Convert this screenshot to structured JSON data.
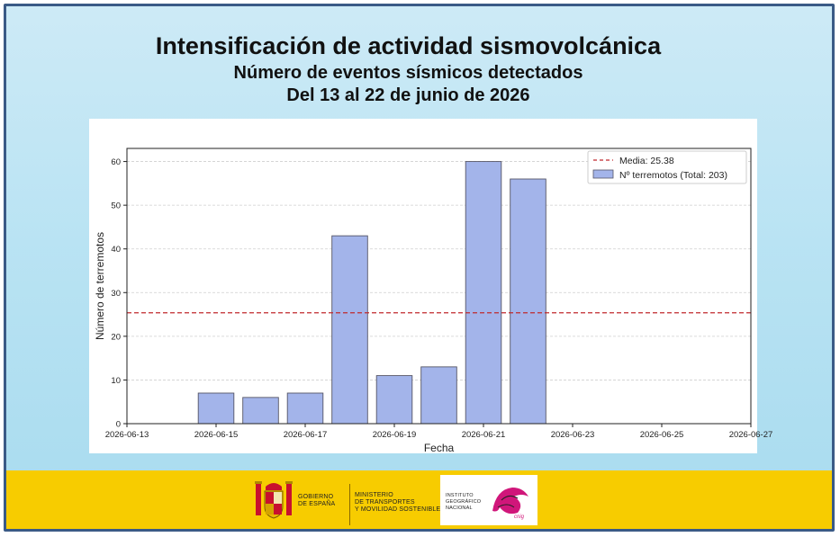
{
  "header": {
    "title": "Intensificación de actividad sismovolcánica",
    "subtitle": "Número de eventos sísmicos detectados",
    "date_range": "Del 13 al 22 de junio de 2026"
  },
  "chart_data": {
    "type": "bar",
    "title": "",
    "xlabel": "Fecha",
    "ylabel": "Número de terremotos",
    "x_ticks": [
      "2026-06-13",
      "2026-06-15",
      "2026-06-17",
      "2026-06-19",
      "2026-06-21",
      "2026-06-23",
      "2026-06-25",
      "2026-06-27"
    ],
    "y_ticks": [
      0,
      10,
      20,
      30,
      40,
      50,
      60
    ],
    "xlim": [
      "2026-06-13",
      "2026-06-27"
    ],
    "ylim": [
      0,
      63
    ],
    "grid": "horizontal dashed",
    "legend_position": "top-right",
    "bars": [
      {
        "date": "2026-06-15",
        "value": 7
      },
      {
        "date": "2026-06-16",
        "value": 6
      },
      {
        "date": "2026-06-17",
        "value": 7
      },
      {
        "date": "2026-06-18",
        "value": 43
      },
      {
        "date": "2026-06-19",
        "value": 11
      },
      {
        "date": "2026-06-20",
        "value": 13
      },
      {
        "date": "2026-06-21",
        "value": 60
      },
      {
        "date": "2026-06-22",
        "value": 56
      }
    ],
    "mean_line": {
      "value": 25.38,
      "label": "Media: 25.38"
    },
    "bar_series_label": "Nº terremotos (Total: 203)",
    "colors": {
      "bar_fill": "#a3b4ea",
      "bar_edge": "#555566",
      "mean_line": "#c0282d"
    }
  },
  "footer": {
    "gov_line1": "GOBIERNO",
    "gov_line2": "DE ESPAÑA",
    "ministry_line1": "MINISTERIO",
    "ministry_line2": "DE TRANSPORTES",
    "ministry_line3": "Y MOVILIDAD SOSTENIBLE",
    "ign_line1": "INSTITUTO",
    "ign_line2": "GEOGRÁFICO",
    "ign_line3": "NACIONAL",
    "cnig": "cnig",
    "colors": {
      "band": "#f7cc00"
    }
  }
}
